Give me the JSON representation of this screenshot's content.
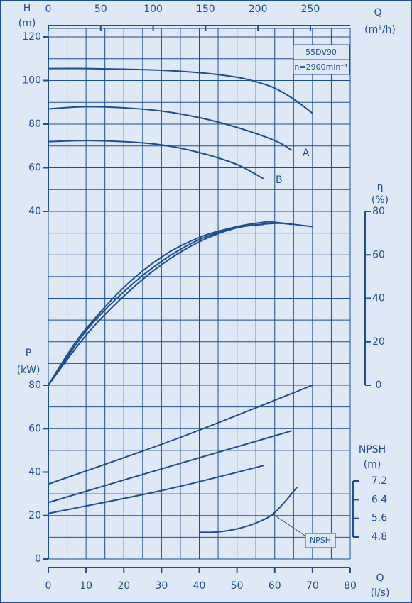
{
  "chart_data": [
    {
      "type": "line",
      "y_label": "H",
      "y_unit": "(m)",
      "x2_label": "Q",
      "x2_unit": "(m³/h)",
      "x2lim": [
        0,
        288
      ],
      "x2ticks": [
        0,
        50,
        100,
        150,
        200,
        250
      ],
      "ylim": [
        40,
        120
      ],
      "yticks": [
        40,
        60,
        80,
        100,
        120
      ],
      "grid": true,
      "annotations": [
        "55DV90",
        "n=2900min⁻¹"
      ],
      "series": [
        {
          "color": "#1f4e8c",
          "x": [
            0,
            10,
            20,
            30,
            40,
            50,
            55,
            60,
            65,
            70
          ],
          "values": [
            105.5,
            105.5,
            105.2,
            104.7,
            103.6,
            101.5,
            99.5,
            96.5,
            91.5,
            85
          ]
        },
        {
          "name": "A",
          "color": "#1f4e8c",
          "x": [
            0,
            10,
            20,
            30,
            40,
            50,
            60,
            64.5
          ],
          "values": [
            87,
            88,
            87.5,
            86,
            83,
            78.5,
            72.5,
            68
          ]
        },
        {
          "name": "B",
          "color": "#1f4e8c",
          "x": [
            0,
            10,
            20,
            30,
            40,
            50,
            57
          ],
          "values": [
            72,
            72.5,
            72,
            70.5,
            67,
            61.5,
            55
          ]
        }
      ]
    },
    {
      "type": "line",
      "y_label": "η",
      "y_unit": "(%)",
      "ylim": [
        0,
        80
      ],
      "yticks": [
        0,
        20,
        40,
        60,
        80
      ],
      "series": [
        {
          "color": "#1f4e8c",
          "x": [
            0,
            5,
            10,
            20,
            30,
            40,
            50,
            57,
            60,
            70
          ],
          "values": [
            0,
            14,
            26,
            45,
            59,
            68,
            73,
            75,
            75,
            73
          ]
        },
        {
          "color": "#1f4e8c",
          "x": [
            0,
            10,
            20,
            30,
            40,
            50,
            60,
            64.5
          ],
          "values": [
            0,
            25,
            43,
            57,
            67,
            72.5,
            74.5,
            74
          ]
        },
        {
          "color": "#1f4e8c",
          "x": [
            0,
            10,
            20,
            30,
            40,
            50,
            57
          ],
          "values": [
            0,
            23,
            41,
            55.5,
            66,
            72.5,
            74
          ]
        }
      ]
    },
    {
      "type": "line",
      "y_label": "P",
      "y_unit": "(kW)",
      "x_label": "Q",
      "x_unit": "(l/s)",
      "xlim": [
        0,
        80
      ],
      "xticks": [
        0,
        10,
        20,
        30,
        40,
        50,
        60,
        70,
        80
      ],
      "ylim": [
        0,
        80
      ],
      "yticks": [
        0,
        20,
        40,
        60,
        80
      ],
      "series": [
        {
          "color": "#1f4e8c",
          "x": [
            0,
            35,
            70
          ],
          "values": [
            34.5,
            56,
            80
          ]
        },
        {
          "color": "#1f4e8c",
          "x": [
            0,
            30,
            64.5
          ],
          "values": [
            26,
            41.5,
            59
          ]
        },
        {
          "color": "#1f4e8c",
          "x": [
            0,
            30,
            57
          ],
          "values": [
            21,
            31.5,
            43
          ]
        }
      ]
    },
    {
      "type": "line",
      "y_label": "NPSH",
      "y_unit": "(m)",
      "ylim": [
        4.8,
        7.2
      ],
      "yticks": [
        4.8,
        5.6,
        6.4,
        7.2
      ],
      "series": [
        {
          "name": "NPSH",
          "color": "#1f4e8c",
          "x": [
            40,
            45,
            50,
            55,
            60,
            66
          ],
          "values": [
            5.0,
            5.02,
            5.15,
            5.4,
            5.85,
            6.95
          ]
        }
      ]
    }
  ]
}
